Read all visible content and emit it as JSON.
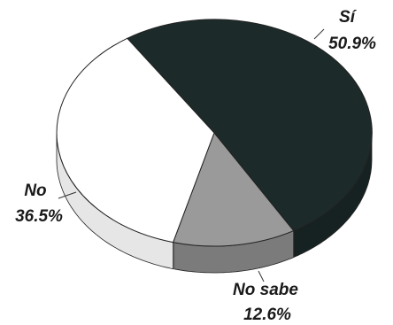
{
  "chart_data": {
    "type": "pie",
    "title": "",
    "slices": [
      {
        "label": "Sí",
        "value": 50.9,
        "value_label": "50.9%",
        "color": "#1c2a29"
      },
      {
        "label": "No sabe",
        "value": 12.6,
        "value_label": "12.6%",
        "color": "#9a9a9a"
      },
      {
        "label": "No",
        "value": 36.5,
        "value_label": "36.5%",
        "color": "#ffffff"
      }
    ],
    "style": "3d-tilted",
    "legend": "none"
  }
}
